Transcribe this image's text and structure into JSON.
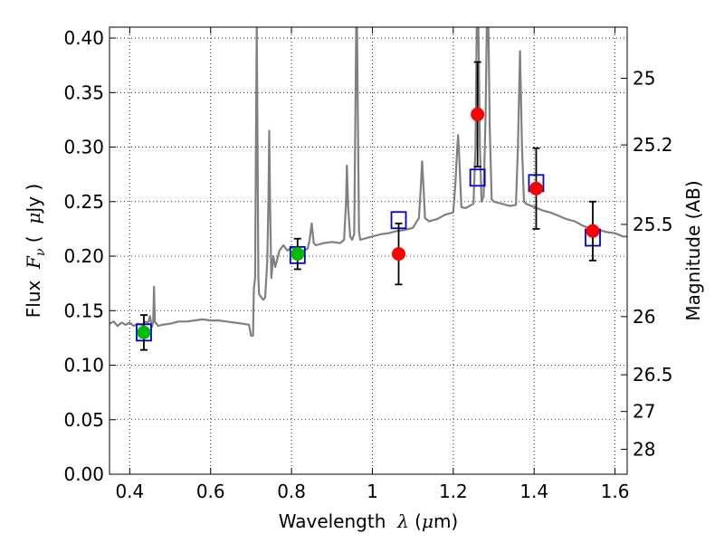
{
  "chart_data": {
    "type": "scatter",
    "xlabel": "Wavelength  λ (μm)",
    "ylabel": "Flux  F_ν ( μJy )",
    "y2label": "Magnitude (AB)",
    "xlim": [
      0.35,
      1.63
    ],
    "ylim": [
      0.0,
      0.41
    ],
    "grid": true,
    "x_ticks": [
      {
        "value": 0.4,
        "label": "0.4"
      },
      {
        "value": 0.6,
        "label": "0.6"
      },
      {
        "value": 0.8,
        "label": "0.8"
      },
      {
        "value": 1.0,
        "label": "1"
      },
      {
        "value": 1.2,
        "label": "1.2"
      },
      {
        "value": 1.4,
        "label": "1.4"
      },
      {
        "value": 1.6,
        "label": "1.6"
      }
    ],
    "y_ticks": [
      {
        "value": 0.0,
        "label": "0.00"
      },
      {
        "value": 0.05,
        "label": "0.05"
      },
      {
        "value": 0.1,
        "label": "0.10"
      },
      {
        "value": 0.15,
        "label": "0.15"
      },
      {
        "value": 0.2,
        "label": "0.20"
      },
      {
        "value": 0.25,
        "label": "0.25"
      },
      {
        "value": 0.3,
        "label": "0.30"
      },
      {
        "value": 0.35,
        "label": "0.35"
      },
      {
        "value": 0.4,
        "label": "0.40"
      }
    ],
    "y2_ticks": [
      {
        "mag": 25,
        "label": "25"
      },
      {
        "mag": 25.2,
        "label": "25.2"
      },
      {
        "mag": 25.5,
        "label": "25.5"
      },
      {
        "mag": 26,
        "label": "26"
      },
      {
        "mag": 26.5,
        "label": "26.5"
      },
      {
        "mag": 27,
        "label": "27"
      },
      {
        "mag": 28,
        "label": "28"
      }
    ],
    "series": [
      {
        "kind": "spectrum",
        "color": "#808080",
        "points": [
          [
            0.35,
            0.138
          ],
          [
            0.36,
            0.14
          ],
          [
            0.37,
            0.136
          ],
          [
            0.38,
            0.139
          ],
          [
            0.39,
            0.137
          ],
          [
            0.4,
            0.139
          ],
          [
            0.41,
            0.136
          ],
          [
            0.42,
            0.138
          ],
          [
            0.43,
            0.137
          ],
          [
            0.44,
            0.14
          ],
          [
            0.445,
            0.138
          ],
          [
            0.45,
            0.145
          ],
          [
            0.455,
            0.135
          ],
          [
            0.458,
            0.14
          ],
          [
            0.46,
            0.172
          ],
          [
            0.462,
            0.14
          ],
          [
            0.47,
            0.136
          ],
          [
            0.48,
            0.137
          ],
          [
            0.5,
            0.138
          ],
          [
            0.52,
            0.14
          ],
          [
            0.54,
            0.14
          ],
          [
            0.56,
            0.141
          ],
          [
            0.58,
            0.142
          ],
          [
            0.6,
            0.141
          ],
          [
            0.62,
            0.141
          ],
          [
            0.64,
            0.14
          ],
          [
            0.66,
            0.139
          ],
          [
            0.68,
            0.138
          ],
          [
            0.695,
            0.137
          ],
          [
            0.7,
            0.127
          ],
          [
            0.705,
            0.127
          ],
          [
            0.707,
            0.17
          ],
          [
            0.71,
            0.18
          ],
          [
            0.712,
            0.3
          ],
          [
            0.714,
            0.41
          ],
          [
            0.716,
            0.3
          ],
          [
            0.718,
            0.18
          ],
          [
            0.72,
            0.165
          ],
          [
            0.73,
            0.16
          ],
          [
            0.735,
            0.162
          ],
          [
            0.74,
            0.195
          ],
          [
            0.743,
            0.25
          ],
          [
            0.745,
            0.315
          ],
          [
            0.747,
            0.25
          ],
          [
            0.75,
            0.18
          ],
          [
            0.755,
            0.2
          ],
          [
            0.76,
            0.19
          ],
          [
            0.77,
            0.205
          ],
          [
            0.78,
            0.21
          ],
          [
            0.79,
            0.205
          ],
          [
            0.8,
            0.208
          ],
          [
            0.81,
            0.206
          ],
          [
            0.82,
            0.204
          ],
          [
            0.83,
            0.205
          ],
          [
            0.84,
            0.207
          ],
          [
            0.845,
            0.215
          ],
          [
            0.85,
            0.23
          ],
          [
            0.855,
            0.212
          ],
          [
            0.86,
            0.21
          ],
          [
            0.88,
            0.212
          ],
          [
            0.9,
            0.213
          ],
          [
            0.92,
            0.212
          ],
          [
            0.93,
            0.215
          ],
          [
            0.935,
            0.25
          ],
          [
            0.937,
            0.283
          ],
          [
            0.94,
            0.245
          ],
          [
            0.945,
            0.218
          ],
          [
            0.95,
            0.215
          ],
          [
            0.955,
            0.22
          ],
          [
            0.958,
            0.33
          ],
          [
            0.96,
            0.41
          ],
          [
            0.962,
            0.41
          ],
          [
            0.964,
            0.33
          ],
          [
            0.967,
            0.222
          ],
          [
            0.97,
            0.215
          ],
          [
            0.98,
            0.216
          ],
          [
            1.0,
            0.218
          ],
          [
            1.02,
            0.22
          ],
          [
            1.04,
            0.221
          ],
          [
            1.06,
            0.223
          ],
          [
            1.08,
            0.224
          ],
          [
            1.1,
            0.226
          ],
          [
            1.115,
            0.235
          ],
          [
            1.12,
            0.265
          ],
          [
            1.123,
            0.287
          ],
          [
            1.127,
            0.26
          ],
          [
            1.13,
            0.235
          ],
          [
            1.14,
            0.232
          ],
          [
            1.16,
            0.234
          ],
          [
            1.18,
            0.238
          ],
          [
            1.2,
            0.24
          ],
          [
            1.205,
            0.265
          ],
          [
            1.21,
            0.3
          ],
          [
            1.212,
            0.311
          ],
          [
            1.215,
            0.29
          ],
          [
            1.22,
            0.245
          ],
          [
            1.23,
            0.244
          ],
          [
            1.24,
            0.246
          ],
          [
            1.25,
            0.248
          ],
          [
            1.255,
            0.3
          ],
          [
            1.258,
            0.41
          ],
          [
            1.262,
            0.41
          ],
          [
            1.266,
            0.3
          ],
          [
            1.27,
            0.25
          ],
          [
            1.275,
            0.255
          ],
          [
            1.28,
            0.33
          ],
          [
            1.283,
            0.41
          ],
          [
            1.287,
            0.41
          ],
          [
            1.29,
            0.32
          ],
          [
            1.295,
            0.252
          ],
          [
            1.3,
            0.25
          ],
          [
            1.32,
            0.248
          ],
          [
            1.34,
            0.246
          ],
          [
            1.355,
            0.247
          ],
          [
            1.36,
            0.3
          ],
          [
            1.365,
            0.388
          ],
          [
            1.37,
            0.3
          ],
          [
            1.375,
            0.25
          ],
          [
            1.38,
            0.248
          ],
          [
            1.4,
            0.245
          ],
          [
            1.42,
            0.242
          ],
          [
            1.44,
            0.24
          ],
          [
            1.46,
            0.237
          ],
          [
            1.48,
            0.234
          ],
          [
            1.5,
            0.232
          ],
          [
            1.52,
            0.228
          ],
          [
            1.54,
            0.225
          ],
          [
            1.56,
            0.224
          ],
          [
            1.58,
            0.222
          ],
          [
            1.6,
            0.221
          ],
          [
            1.62,
            0.218
          ],
          [
            1.63,
            0.218
          ]
        ]
      },
      {
        "kind": "model-squares",
        "color": "#0000cc",
        "points": [
          [
            0.435,
            0.13
          ],
          [
            0.815,
            0.201
          ],
          [
            1.065,
            0.233
          ],
          [
            1.26,
            0.272
          ],
          [
            1.405,
            0.267
          ],
          [
            1.545,
            0.217
          ]
        ]
      },
      {
        "kind": "green-points",
        "color": "#00bb00",
        "points": [
          {
            "x": 0.435,
            "y": 0.13,
            "err": 0.016
          },
          {
            "x": 0.815,
            "y": 0.202,
            "err": 0.014
          }
        ]
      },
      {
        "kind": "red-points",
        "color": "#ff0000",
        "points": [
          {
            "x": 1.065,
            "y": 0.202,
            "err": 0.028
          },
          {
            "x": 1.26,
            "y": 0.33,
            "err": 0.048
          },
          {
            "x": 1.405,
            "y": 0.262,
            "err": 0.037
          },
          {
            "x": 1.545,
            "y": 0.223,
            "err": 0.027
          }
        ]
      }
    ]
  }
}
